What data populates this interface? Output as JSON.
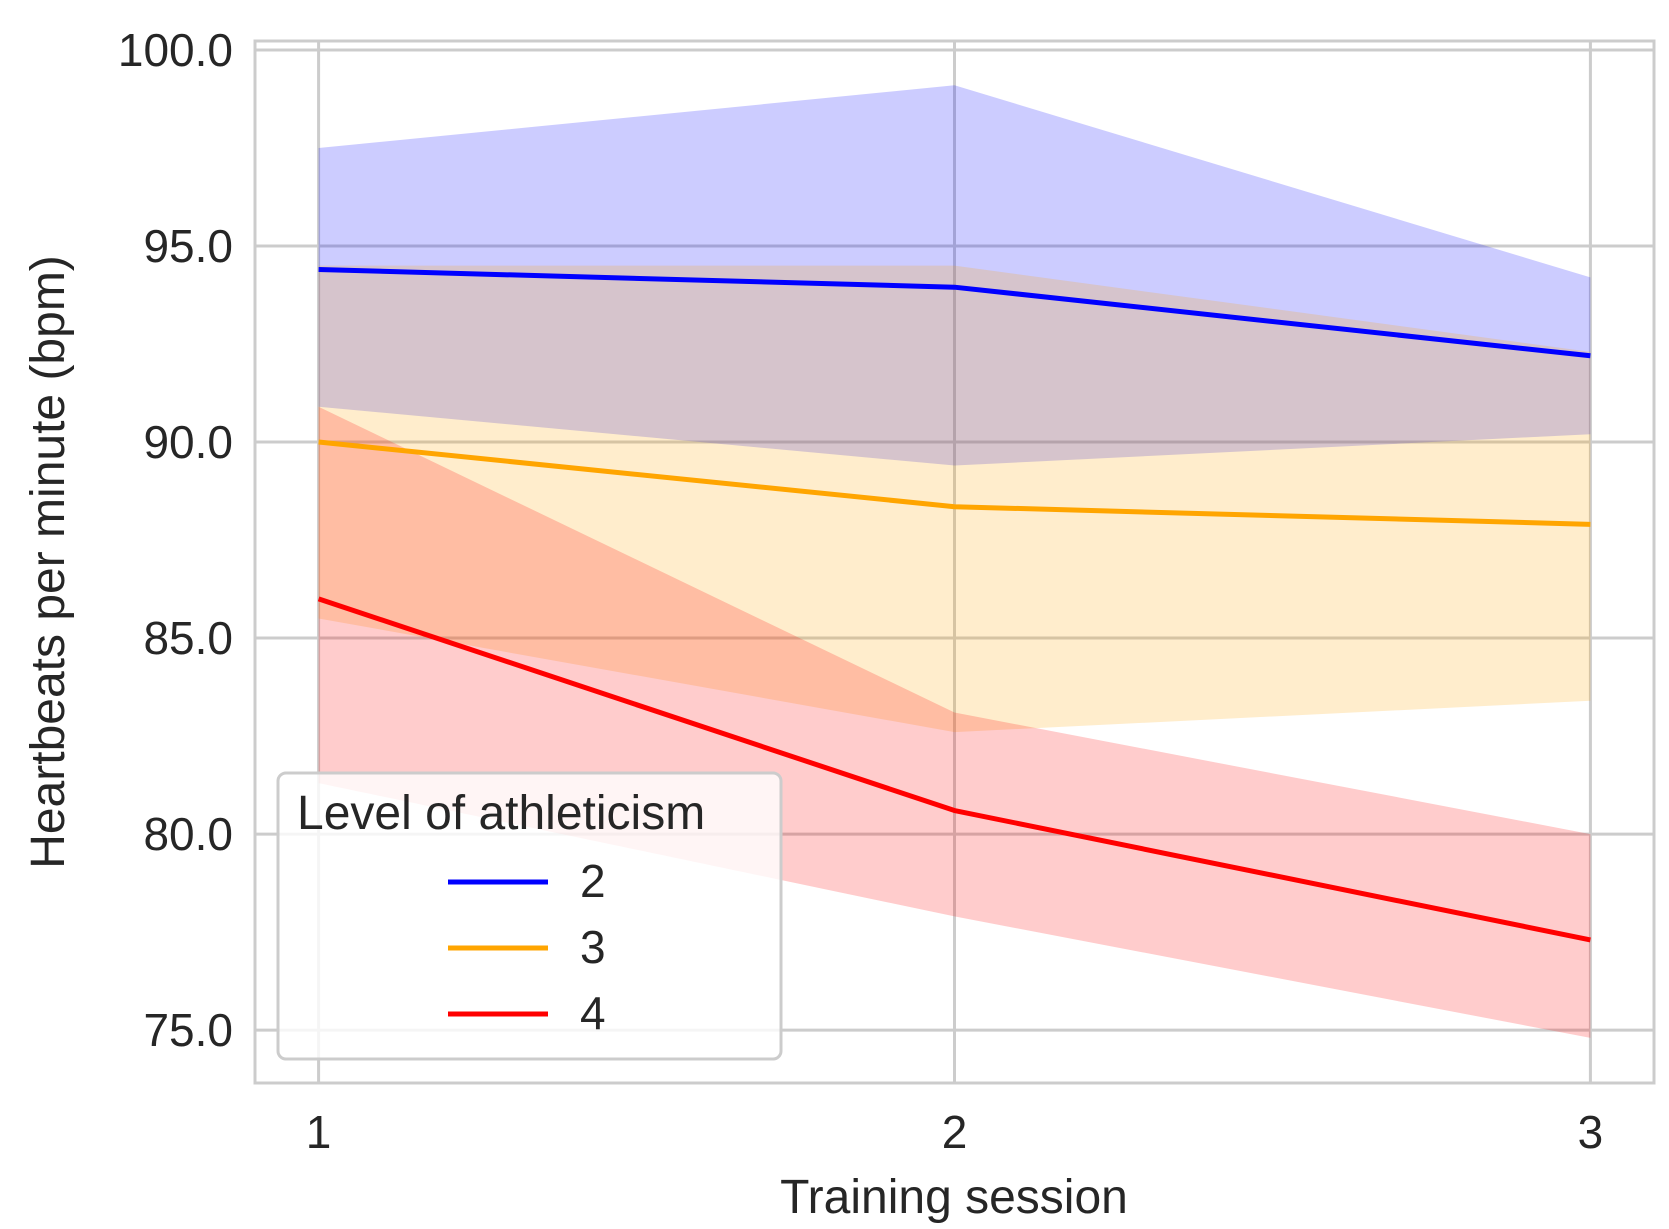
{
  "chart_data": {
    "type": "line",
    "title": "",
    "xlabel": "Training session",
    "ylabel": "Heartbeats per minute (bpm)",
    "x": [
      1,
      2,
      3
    ],
    "x_tick_labels": [
      "1",
      "2",
      "3"
    ],
    "y_ticks": [
      75,
      80,
      85,
      90,
      95,
      100
    ],
    "y_tick_labels": [
      "75.0",
      "80.0",
      "85.0",
      "90.0",
      "95.0",
      "100.0"
    ],
    "xlim": [
      0.9,
      3.1
    ],
    "ylim": [
      73.65,
      100.23
    ],
    "grid": true,
    "legend": {
      "title": "Level of athleticism",
      "placement": "lower-left"
    },
    "series": [
      {
        "name": "2",
        "color": "#0000ff",
        "values": [
          94.4,
          93.95,
          92.2
        ],
        "ci_lower": [
          90.9,
          89.4,
          90.2
        ],
        "ci_upper": [
          97.5,
          99.1,
          94.2
        ]
      },
      {
        "name": "3",
        "color": "#ffa500",
        "values": [
          90.0,
          88.35,
          87.9
        ],
        "ci_lower": [
          85.5,
          82.6,
          83.4
        ],
        "ci_upper": [
          94.5,
          94.5,
          92.3
        ]
      },
      {
        "name": "4",
        "color": "#ff0000",
        "values": [
          86.0,
          80.6,
          77.3
        ],
        "ci_lower": [
          81.3,
          77.9,
          74.8
        ],
        "ci_upper": [
          90.9,
          83.1,
          80.0
        ]
      }
    ]
  }
}
